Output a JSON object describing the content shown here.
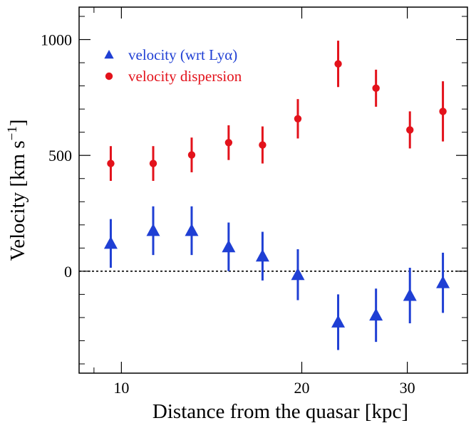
{
  "chart_data": {
    "type": "scatter",
    "xlabel": "Distance from the quasar [kpc]",
    "ylabel": "Velocity [km s",
    "ylabel_sup": "−1",
    "ylabel_end": "]",
    "x_scale": "log",
    "xlim": [
      8.5,
      37.8
    ],
    "ylim": [
      -440,
      1140
    ],
    "x_ticks": [
      10,
      20,
      30
    ],
    "x_tick_labels": [
      "10",
      "20",
      "30"
    ],
    "y_ticks": [
      0,
      500,
      1000
    ],
    "y_tick_labels": [
      "0",
      "500",
      "1000"
    ],
    "grid": false,
    "reference_line": {
      "y": 0,
      "style": "dotted"
    },
    "legend": {
      "position": "top-left",
      "entries": [
        {
          "label": "velocity (wrt Lyα)",
          "marker": "triangle",
          "color": "#1f3fd4"
        },
        {
          "label": "velocity dispersion",
          "marker": "circle",
          "color": "#e3121b"
        }
      ]
    },
    "series": [
      {
        "name": "velocity (wrt Lyα)",
        "marker": "triangle",
        "color": "#1f3fd4",
        "points": [
          {
            "x": 9.6,
            "y": 120,
            "err": 105
          },
          {
            "x": 11.3,
            "y": 175,
            "err": 105
          },
          {
            "x": 13.1,
            "y": 175,
            "err": 105
          },
          {
            "x": 15.1,
            "y": 105,
            "err": 105
          },
          {
            "x": 17.2,
            "y": 65,
            "err": 105
          },
          {
            "x": 19.7,
            "y": -15,
            "err": 110
          },
          {
            "x": 23.0,
            "y": -220,
            "err": 120
          },
          {
            "x": 26.6,
            "y": -190,
            "err": 115
          },
          {
            "x": 30.3,
            "y": -105,
            "err": 120
          },
          {
            "x": 34.4,
            "y": -50,
            "err": 130
          }
        ]
      },
      {
        "name": "velocity dispersion",
        "marker": "circle",
        "color": "#e3121b",
        "points": [
          {
            "x": 9.6,
            "y": 465,
            "err": 75
          },
          {
            "x": 11.3,
            "y": 465,
            "err": 75
          },
          {
            "x": 13.1,
            "y": 502,
            "err": 75
          },
          {
            "x": 15.1,
            "y": 555,
            "err": 75
          },
          {
            "x": 17.2,
            "y": 545,
            "err": 80
          },
          {
            "x": 19.7,
            "y": 658,
            "err": 85
          },
          {
            "x": 23.0,
            "y": 895,
            "err": 100
          },
          {
            "x": 26.6,
            "y": 790,
            "err": 80
          },
          {
            "x": 30.3,
            "y": 610,
            "err": 80
          },
          {
            "x": 34.4,
            "y": 690,
            "err": 130
          }
        ]
      }
    ]
  }
}
